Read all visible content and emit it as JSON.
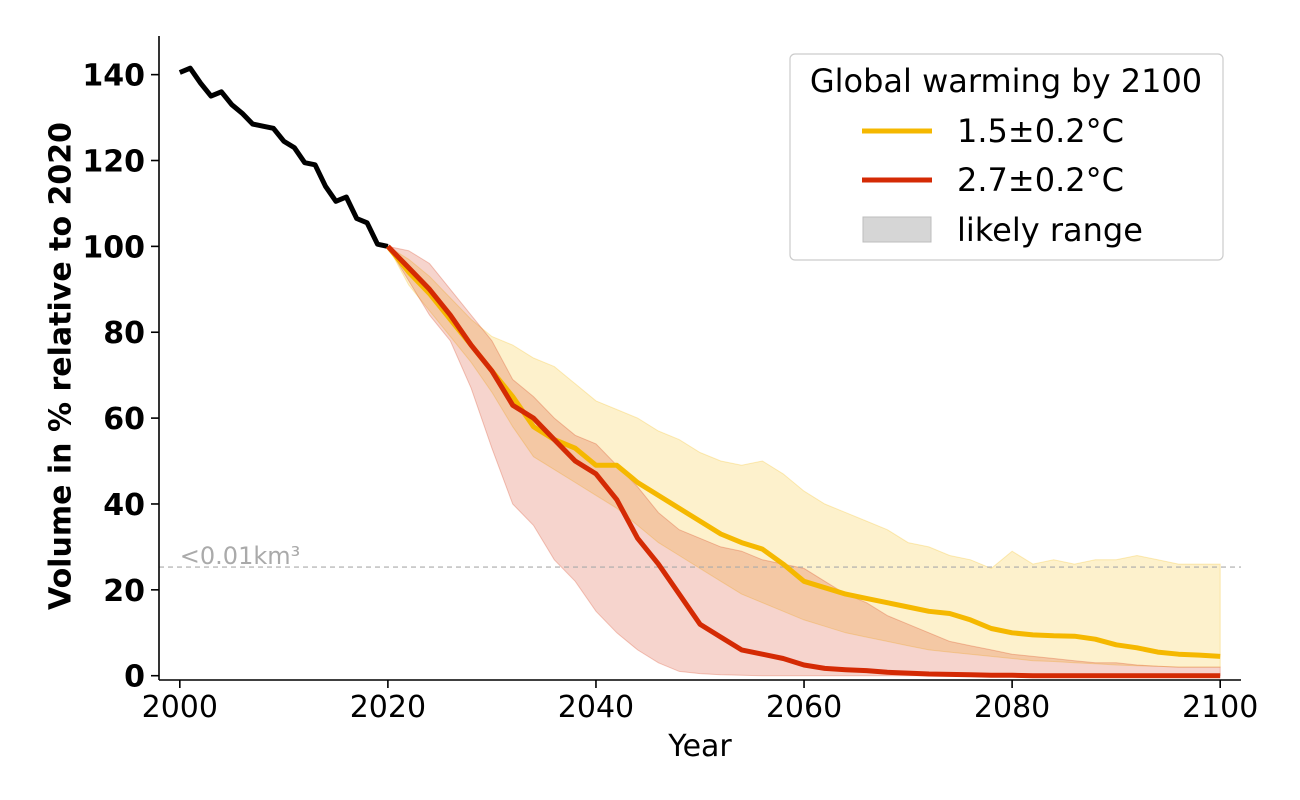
{
  "chart_data": {
    "type": "line",
    "xlabel": "Year",
    "ylabel": "Volume in % relative to 2020",
    "xlim": [
      1998,
      2102
    ],
    "ylim": [
      -1,
      149
    ],
    "x_ticks": [
      2000,
      2020,
      2040,
      2060,
      2080,
      2100
    ],
    "y_ticks": [
      0,
      20,
      40,
      60,
      80,
      100,
      120,
      140
    ],
    "grid": false,
    "legend": {
      "title": "Global warming by 2100",
      "placement": "top-right",
      "entries": [
        "1.5±0.2°C",
        "2.7±0.2°C",
        "likely range"
      ]
    },
    "threshold": {
      "y": 25.3,
      "label": "<0.01km³"
    },
    "colors": {
      "historical": "#000000",
      "low": "#f5b800",
      "high": "#d42a04",
      "range_fill": "#d6d6d6"
    },
    "historical": {
      "x": [
        2000,
        2001,
        2002,
        2003,
        2004,
        2005,
        2006,
        2007,
        2008,
        2009,
        2010,
        2011,
        2012,
        2013,
        2014,
        2015,
        2016,
        2017,
        2018,
        2019,
        2020
      ],
      "y": [
        140.5,
        141.5,
        138,
        135,
        136,
        133,
        131,
        128.5,
        128,
        127.5,
        124.5,
        123,
        119.5,
        119,
        114,
        110.5,
        111.5,
        106.5,
        105.5,
        100.5,
        100
      ]
    },
    "series": [
      {
        "name": "1.5±0.2°C",
        "x": [
          2020,
          2022,
          2024,
          2026,
          2028,
          2030,
          2032,
          2034,
          2036,
          2038,
          2040,
          2042,
          2044,
          2046,
          2048,
          2050,
          2052,
          2054,
          2056,
          2058,
          2060,
          2062,
          2064,
          2066,
          2068,
          2070,
          2072,
          2074,
          2076,
          2078,
          2080,
          2082,
          2084,
          2086,
          2088,
          2090,
          2092,
          2094,
          2096,
          2098,
          2100
        ],
        "y": [
          100,
          94,
          89,
          83,
          77,
          71,
          65,
          58,
          55,
          53,
          49,
          49,
          45,
          42,
          39,
          36,
          33,
          31,
          29.5,
          26,
          22,
          20.5,
          19,
          18,
          17,
          16,
          15,
          14.5,
          13,
          11,
          10,
          9.5,
          9.3,
          9.2,
          8.5,
          7.2,
          6.5,
          5.5,
          5,
          4.8,
          4.5
        ],
        "lower": [
          100,
          91,
          85,
          79,
          73,
          66,
          58,
          51,
          48,
          45,
          42,
          39,
          35,
          31,
          28,
          25,
          22,
          19,
          17,
          15,
          13,
          11.5,
          10,
          9,
          8,
          7,
          6,
          5.5,
          5,
          4.5,
          4,
          3.5,
          3.3,
          3,
          2.8,
          2.5,
          2.3,
          2.2,
          2,
          2,
          2
        ],
        "upper": [
          100,
          97,
          93,
          88,
          83,
          79,
          77,
          74,
          72,
          68,
          64,
          62,
          60,
          57,
          55,
          52,
          50,
          49,
          50,
          47,
          43,
          40,
          38,
          36,
          34,
          31,
          30,
          28,
          27,
          25,
          29,
          26,
          27,
          26,
          27,
          27,
          28,
          27,
          26,
          26,
          26
        ]
      },
      {
        "name": "2.7±0.2°C",
        "x": [
          2020,
          2022,
          2024,
          2026,
          2028,
          2030,
          2032,
          2034,
          2036,
          2038,
          2040,
          2042,
          2044,
          2046,
          2048,
          2050,
          2052,
          2054,
          2056,
          2058,
          2060,
          2062,
          2064,
          2066,
          2068,
          2070,
          2072,
          2074,
          2076,
          2078,
          2080,
          2082,
          2084,
          2086,
          2088,
          2090,
          2092,
          2094,
          2096,
          2098,
          2100
        ],
        "y": [
          100,
          95,
          90,
          84,
          77,
          71,
          63,
          60,
          55,
          50,
          47,
          41,
          32,
          26,
          19,
          12,
          9,
          6,
          5,
          4,
          2.5,
          1.7,
          1.4,
          1.2,
          0.8,
          0.6,
          0.4,
          0.3,
          0.2,
          0.1,
          0.1,
          0,
          0,
          0,
          0,
          0,
          0,
          0,
          0,
          0,
          0
        ],
        "lower": [
          100,
          92,
          84,
          78,
          67,
          53,
          40,
          35,
          27,
          22,
          15,
          10,
          6,
          3,
          1,
          0.5,
          0.2,
          0.1,
          0,
          0,
          0,
          0,
          0,
          0,
          0,
          0,
          0,
          0,
          0,
          0,
          0,
          0,
          0,
          0,
          0,
          0,
          0,
          0,
          0,
          0,
          0
        ],
        "upper": [
          100,
          99,
          96,
          90,
          84,
          78,
          69,
          65,
          60,
          56,
          54,
          49,
          44,
          38,
          34,
          32,
          30,
          29,
          27,
          26,
          25,
          22,
          19,
          17,
          14,
          12,
          10,
          8,
          7,
          6,
          5,
          4.5,
          4,
          3.5,
          3,
          3,
          2.5,
          2.2,
          2,
          2,
          2
        ]
      }
    ]
  }
}
